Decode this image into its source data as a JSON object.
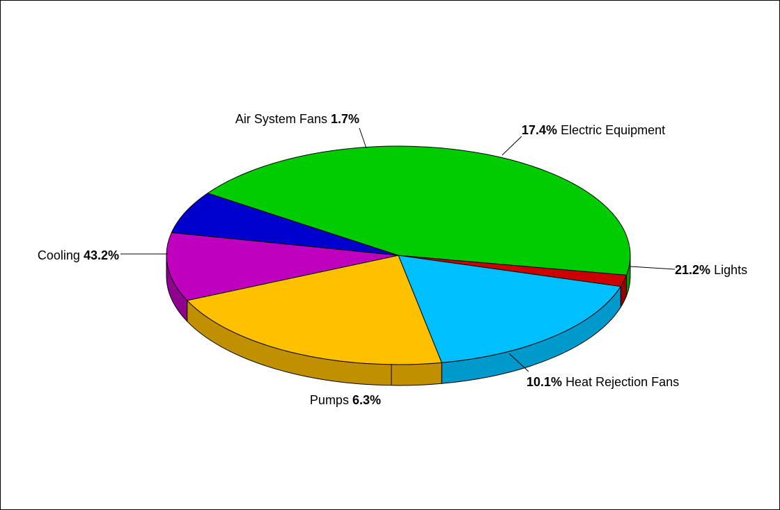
{
  "chart_data": {
    "type": "pie",
    "style": "3d",
    "title": "",
    "legend": "none",
    "slices": [
      {
        "label": "Air System Fans",
        "value": 1.7,
        "value_text": "1.7%",
        "color": "#CC0000",
        "side_color": "#990000"
      },
      {
        "label": "Electric Equipment",
        "value": 17.4,
        "value_text": "17.4%",
        "color": "#00BFFF",
        "side_color": "#0099CC"
      },
      {
        "label": "Lights",
        "value": 21.2,
        "value_text": "21.2%",
        "color": "#FFC000",
        "side_color": "#C09000"
      },
      {
        "label": "Heat Rejection Fans",
        "value": 10.1,
        "value_text": "10.1%",
        "color": "#BF00BF",
        "side_color": "#8F008F"
      },
      {
        "label": "Pumps",
        "value": 6.3,
        "value_text": "6.3%",
        "color": "#0000CC",
        "side_color": "#000099"
      },
      {
        "label": "Cooling",
        "value": 43.2,
        "value_text": "43.2%",
        "color": "#00CC00",
        "side_color": "#009900"
      }
    ]
  }
}
